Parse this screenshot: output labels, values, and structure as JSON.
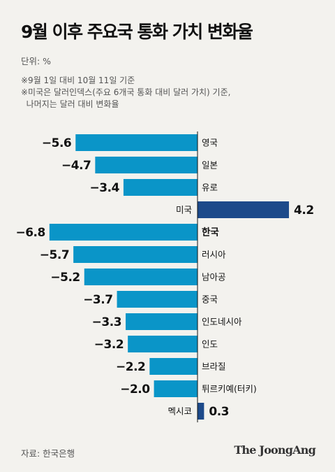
{
  "title": "9월 이후 주요국 통화 가치 변화율",
  "unit": "단위: %",
  "notes": [
    "※9월 1일 대비 10월 11일 기준",
    "※미국은 달러인덱스(주요 6개국 통화 대비 달러 가치) 기준,",
    "  나머지는 달러 대비 변화율"
  ],
  "source": "자료: 한국은행",
  "brand": "The JoongAng",
  "colors": {
    "negative": "#0a95c8",
    "positive": "#1d4a8a",
    "background": "#f3f2ee"
  },
  "chart_data": {
    "type": "bar",
    "orientation": "horizontal",
    "categories": [
      "영국",
      "일본",
      "유로",
      "미국",
      "한국",
      "러시아",
      "남아공",
      "중국",
      "인도네시아",
      "인도",
      "브라질",
      "튀르키예(터키)",
      "멕시코"
    ],
    "value_labels": [
      "−5.6",
      "−4.7",
      "−3.4",
      "4.2",
      "−6.8",
      "−5.7",
      "−5.2",
      "−3.7",
      "−3.3",
      "−3.2",
      "−2.2",
      "−2.0",
      "0.3"
    ],
    "values": [
      -5.6,
      -4.7,
      -3.4,
      4.2,
      -6.8,
      -5.7,
      -5.2,
      -3.7,
      -3.3,
      -3.2,
      -2.2,
      -2.0,
      0.3
    ],
    "highlight": "한국",
    "title": "",
    "xlabel": "",
    "ylabel": "",
    "grid": false,
    "legend": "none"
  }
}
